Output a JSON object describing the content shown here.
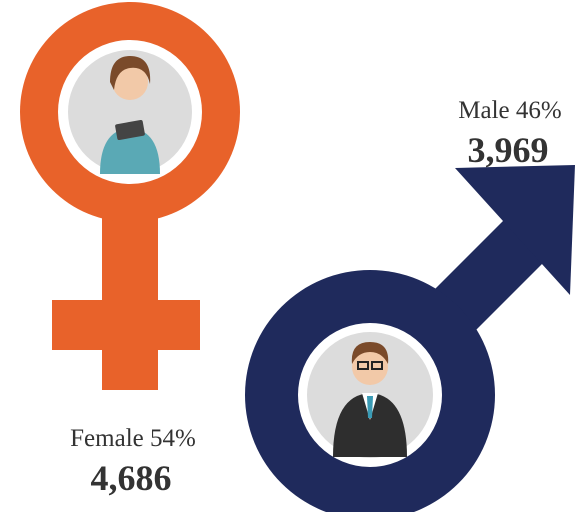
{
  "groups": [
    {
      "label": "Female 54%",
      "count": "4,686"
    },
    {
      "label": "Male 46%",
      "count": "3,969"
    }
  ]
}
